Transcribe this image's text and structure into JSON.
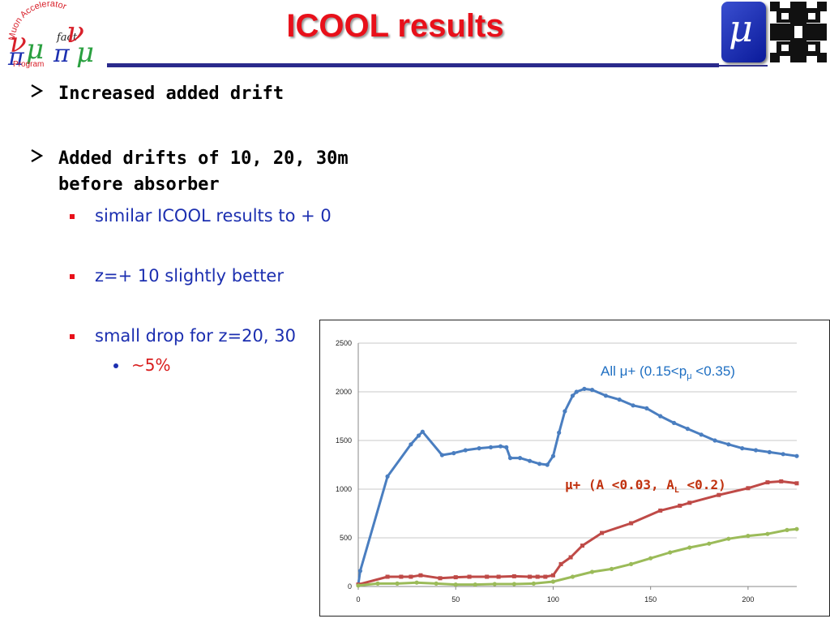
{
  "logo_left": {
    "text_arc": "Muon Accelerator Program",
    "fact": "fact"
  },
  "title": "ICOOL results",
  "bullets": [
    {
      "text": "Increased added drift"
    },
    {
      "text": "Added drifts of 10, 20, 30m before absorber"
    }
  ],
  "subbullets": [
    {
      "text": "similar ICOOL results to + 0"
    },
    {
      "text": "z=+ 10 slightly better"
    },
    {
      "text": "small drop for z=20, 30"
    }
  ],
  "subsubbullets": [
    {
      "text": "~5%"
    }
  ],
  "logo_right": {
    "symbol": "μ"
  },
  "colors": {
    "title": "#e8101a",
    "blue": "#4a7ec0",
    "red": "#bf4a47",
    "green": "#9bbb59"
  },
  "chart_data": {
    "type": "line",
    "xlim": [
      0,
      225
    ],
    "ylim": [
      0,
      2500
    ],
    "xticks": [
      0,
      50,
      100,
      150,
      200
    ],
    "yticks": [
      0,
      500,
      1000,
      1500,
      2000,
      2500
    ],
    "grid": "horizontal",
    "annotations": {
      "blue_pre": "All μ+ (0.15<p",
      "blue_sub": "μ",
      "blue_post": " <0.35)",
      "red_pre": "μ+ (A",
      "red_mid": " <0.03, A",
      "red_sub": "L",
      "red_post": " <0.2)"
    },
    "series": [
      {
        "color": "#4a7ec0",
        "x": [
          0,
          1,
          15,
          27,
          31,
          33,
          43,
          49,
          55,
          62,
          68,
          73,
          76,
          78,
          83,
          88,
          93,
          97,
          100,
          103,
          106,
          110,
          112,
          116,
          120,
          127,
          134,
          141,
          148,
          155,
          162,
          169,
          176,
          183,
          190,
          197,
          204,
          211,
          218,
          225
        ],
        "y": [
          20,
          160,
          1130,
          1460,
          1550,
          1590,
          1350,
          1370,
          1400,
          1420,
          1430,
          1440,
          1430,
          1320,
          1320,
          1290,
          1260,
          1250,
          1340,
          1580,
          1800,
          1960,
          2000,
          2030,
          2020,
          1960,
          1920,
          1860,
          1830,
          1750,
          1680,
          1620,
          1560,
          1500,
          1460,
          1420,
          1400,
          1380,
          1360,
          1340
        ]
      },
      {
        "color": "#bf4a47",
        "x": [
          0,
          15,
          22,
          27,
          32,
          42,
          50,
          57,
          66,
          72,
          80,
          88,
          92,
          96,
          100,
          104,
          109,
          115,
          125,
          140,
          155,
          165,
          170,
          185,
          200,
          210,
          217,
          225
        ],
        "y": [
          20,
          100,
          100,
          100,
          115,
          85,
          95,
          100,
          100,
          100,
          105,
          100,
          100,
          100,
          115,
          230,
          300,
          420,
          550,
          650,
          780,
          830,
          860,
          940,
          1010,
          1070,
          1080,
          1060
        ]
      },
      {
        "color": "#9bbb59",
        "x": [
          0,
          10,
          20,
          30,
          40,
          50,
          60,
          70,
          80,
          90,
          100,
          110,
          120,
          130,
          140,
          150,
          160,
          170,
          180,
          190,
          200,
          210,
          220,
          225
        ],
        "y": [
          10,
          30,
          30,
          40,
          30,
          20,
          20,
          25,
          25,
          30,
          50,
          100,
          150,
          180,
          230,
          290,
          350,
          400,
          440,
          490,
          520,
          540,
          580,
          590
        ]
      }
    ]
  }
}
